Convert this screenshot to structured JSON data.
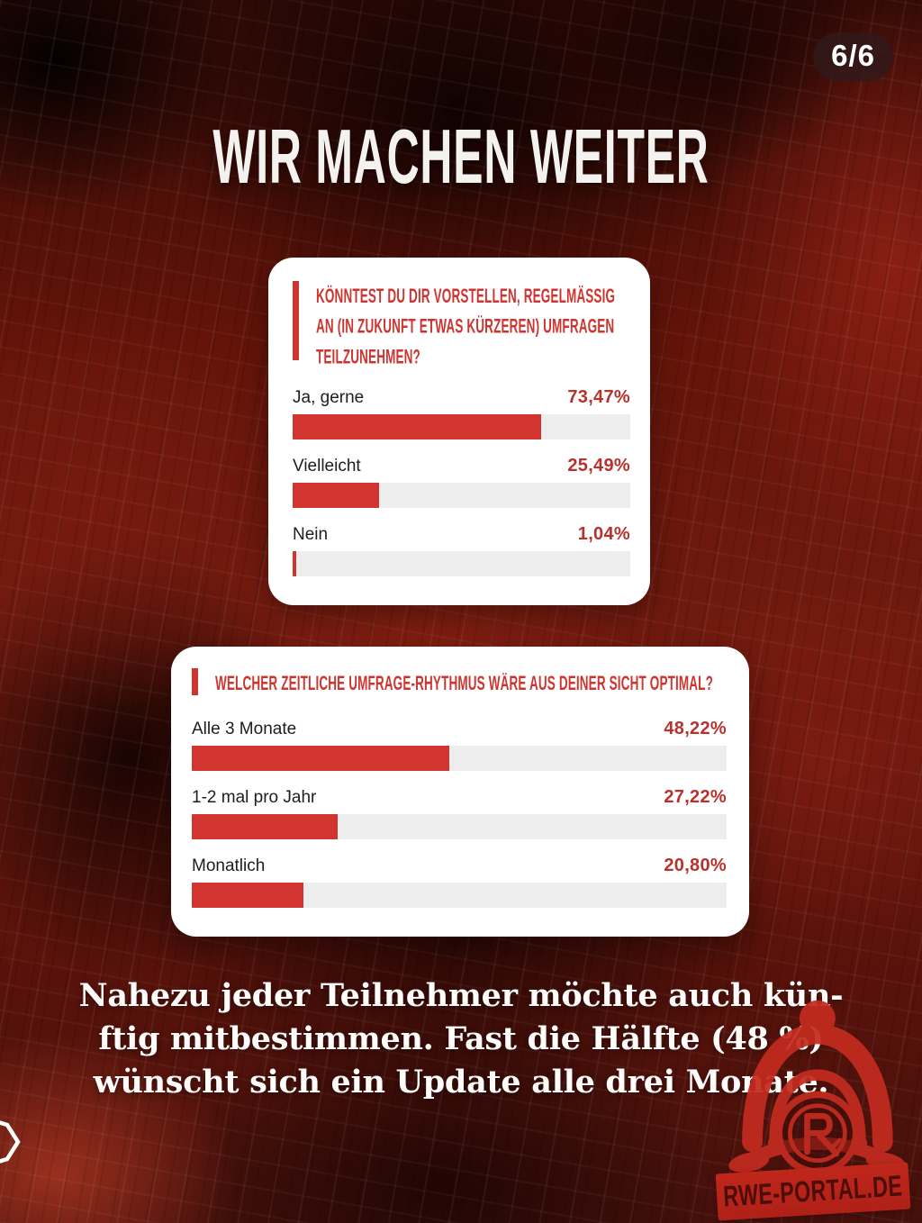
{
  "page": {
    "counter": "6/6",
    "title": "WIR MACHEN WEITER"
  },
  "cards": [
    {
      "question": "KÖNNTEST DU DIR VORSTELLEN, REGELMÄSSIG AN (IN ZUKUNFT ETWAS KÜRZEREN) UMFRAGEN TEILZUNEHMEN?",
      "question_lines": [
        "KÖNNTEST DU DIR VORSTELLEN, REGELMÄSSIG",
        "AN (IN ZUKUNFT ETWAS KÜRZEREN) UMFRAGEN",
        "TEILZUNEHMEN?"
      ],
      "options": [
        {
          "label": "Ja, gerne",
          "value": "73,47%",
          "pct": 73.47
        },
        {
          "label": "Vielleicht",
          "value": "25,49%",
          "pct": 25.49
        },
        {
          "label": "Nein",
          "value": "1,04%",
          "pct": 1.04
        }
      ]
    },
    {
      "question": "WELCHER ZEITLICHE UMFRAGE-RHYTHMUS WÄRE AUS DEINER SICHT OPTIMAL?",
      "question_lines": [
        "WELCHER ZEITLICHE UMFRAGE-RHYTHMUS WÄRE AUS DEINER SICHT OPTIMAL?"
      ],
      "options": [
        {
          "label": "Alle 3 Monate",
          "value": "48,22%",
          "pct": 48.22
        },
        {
          "label": "1-2 mal pro Jahr",
          "value": "27,22%",
          "pct": 27.22
        },
        {
          "label": "Monatlich",
          "value": "20,80%",
          "pct": 20.8
        }
      ]
    }
  ],
  "summary": {
    "lines": [
      "Nahezu jeder Teilnehmer möchte auch kün-",
      "ftig mitbestimmen. Fast die Hälfte (48 %)",
      "wünscht sich ein Update alle drei Monate."
    ]
  },
  "watermark": {
    "text": "RWE-PORTAL.DE"
  },
  "colors": {
    "bar_red": "#d23530",
    "percent_red": "#b7322d",
    "question_red": "#cf3530",
    "card_bg": "#ffffff",
    "track_gray": "#ededed",
    "title_white": "#f4f2ef",
    "watermark_red": "#c32b1f"
  },
  "chart_data": [
    {
      "type": "bar",
      "orientation": "horizontal",
      "title": "KÖNNTEST DU DIR VORSTELLEN, REGELMÄSSIG AN (IN ZUKUNFT ETWAS KÜRZEREN) UMFRAGEN TEILZUNEHMEN?",
      "categories": [
        "Ja, gerne",
        "Vielleicht",
        "Nein"
      ],
      "values": [
        73.47,
        25.49,
        1.04
      ],
      "value_labels": [
        "73,47%",
        "25,49%",
        "1,04%"
      ],
      "xlim": [
        0,
        100
      ],
      "grid": false,
      "bar_color": "#d23530"
    },
    {
      "type": "bar",
      "orientation": "horizontal",
      "title": "WELCHER ZEITLICHE UMFRAGE-RHYTHMUS WÄRE AUS DEINER SICHT OPTIMAL?",
      "categories": [
        "Alle 3 Monate",
        "1-2 mal pro Jahr",
        "Monatlich"
      ],
      "values": [
        48.22,
        27.22,
        20.8
      ],
      "value_labels": [
        "48,22%",
        "27,22%",
        "20,80%"
      ],
      "xlim": [
        0,
        100
      ],
      "grid": false,
      "bar_color": "#d23530"
    }
  ]
}
